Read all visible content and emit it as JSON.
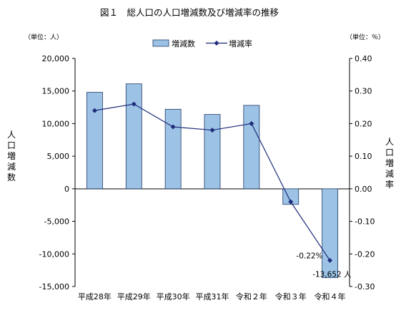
{
  "chart_data": {
    "type": "bar",
    "title": "図１　総人口の人口増減数及び増減率の推移",
    "unit_left": "（単位：人）",
    "unit_right": "（単位：％）",
    "ylabel_left": "人口増減数",
    "ylabel_right": "人口増減率",
    "categories": [
      "平成28年",
      "平成29年",
      "平成30年",
      "平成31年",
      "令和２年",
      "令和３年",
      "令和４年"
    ],
    "series": [
      {
        "name": "増減数",
        "kind": "bar",
        "axis": "left",
        "color": "#9cc3e6",
        "values": [
          14800,
          16100,
          12200,
          11400,
          12800,
          -2400,
          -13652
        ]
      },
      {
        "name": "増減率",
        "kind": "line",
        "axis": "right",
        "color": "#1f2d7a",
        "values": [
          0.24,
          0.26,
          0.19,
          0.18,
          0.2,
          -0.04,
          -0.22
        ]
      }
    ],
    "ylim_left": [
      -15000,
      20000
    ],
    "ylim_right": [
      -0.3,
      0.4
    ],
    "yticks_left": [
      "20,000",
      "15,000",
      "10,000",
      "5,000",
      "0",
      "-5,000",
      "-10,000",
      "-15,000"
    ],
    "yticks_right": [
      "0.40",
      "0.30",
      "0.20",
      "0.10",
      "0.00",
      "-0.10",
      "-0.20",
      "-0.30"
    ],
    "annotations": [
      {
        "text": "-0.22%",
        "category": "令和４年"
      },
      {
        "text": "-13,652 人",
        "category": "令和４年"
      }
    ],
    "legend_position": "top",
    "grid": false
  }
}
